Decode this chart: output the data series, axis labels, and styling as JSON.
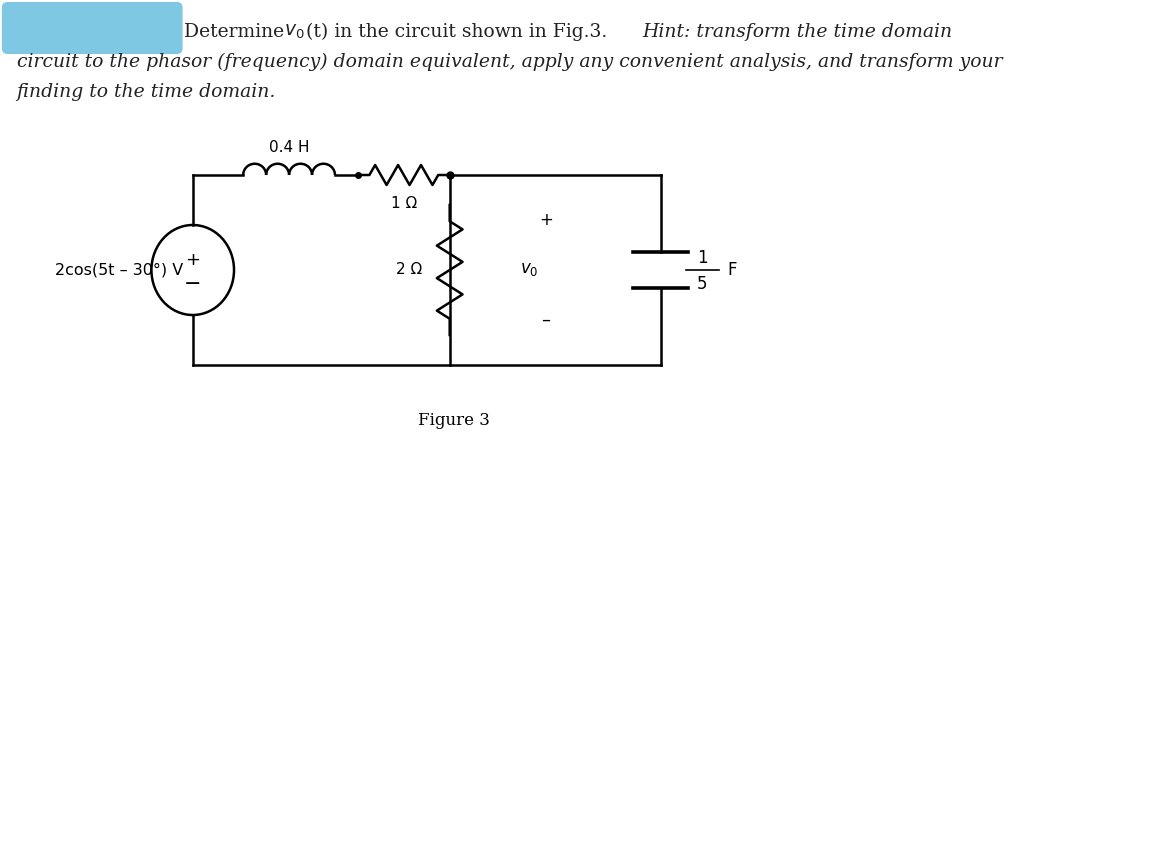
{
  "highlight_color": "#7EC8E3",
  "text_color": "#222222",
  "background_color": "#ffffff",
  "fig_label": "Figure 3",
  "inductor_label": "0.4 H",
  "resistor1_label": "1 Ω",
  "resistor2_label": "2 Ω",
  "capacitor_frac_num": "1",
  "capacitor_frac_den": "5",
  "capacitor_label": "F",
  "source_label": "2cos(5t – 30°) V",
  "plus_sym": "+",
  "minus_sym": "–",
  "line1a": "Determine ",
  "line1b": "(t) in the circuit shown in Fig.3. ",
  "line1c": "Hint: transform the time domain",
  "line2": "circuit to the phasor (frequency) domain equivalent, apply any convenient analysis, and transform your",
  "line3": "finding to the time domain."
}
